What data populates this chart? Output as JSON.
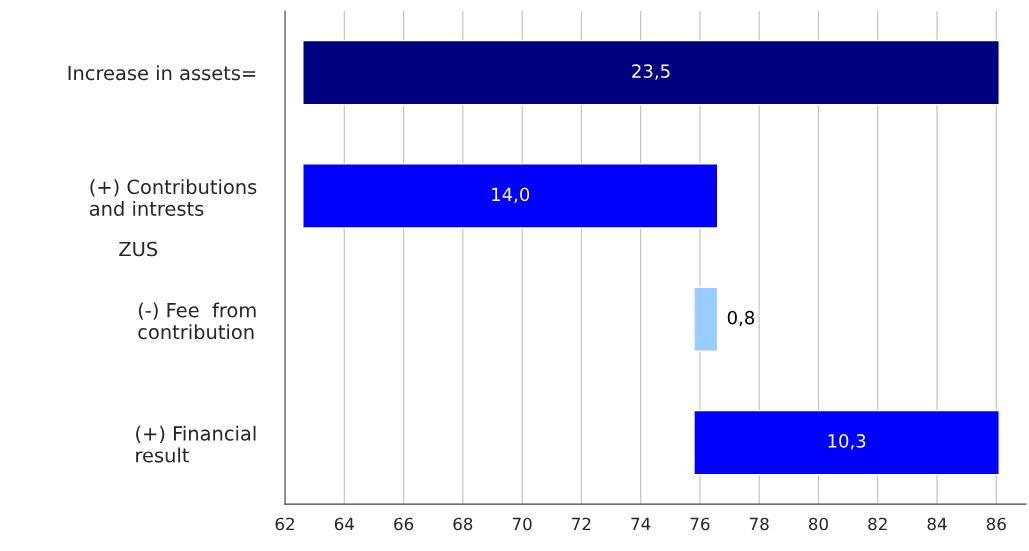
{
  "chart_data": {
    "type": "bar",
    "orientation": "horizontal",
    "categories": [
      "Increase in assets=",
      "(+) Contributions\nand intrests",
      "(-) Fee  from\ncontribution",
      "(+) Financial\nresult"
    ],
    "values": [
      23.5,
      14.0,
      0.8,
      10.3
    ],
    "base": [
      62.6,
      62.6,
      75.8,
      75.8
    ],
    "colors": [
      "#000080",
      "#0000ff",
      "#99ccff",
      "#0000ff"
    ],
    "value_labels": [
      "23,5",
      "14,0",
      "0,8",
      "10,3"
    ],
    "xlim": [
      62,
      87
    ],
    "xticks": [
      62,
      64,
      66,
      68,
      70,
      72,
      74,
      76,
      78,
      80,
      82,
      84,
      86
    ],
    "grid": "x",
    "annotations": [
      "ZUS"
    ]
  }
}
